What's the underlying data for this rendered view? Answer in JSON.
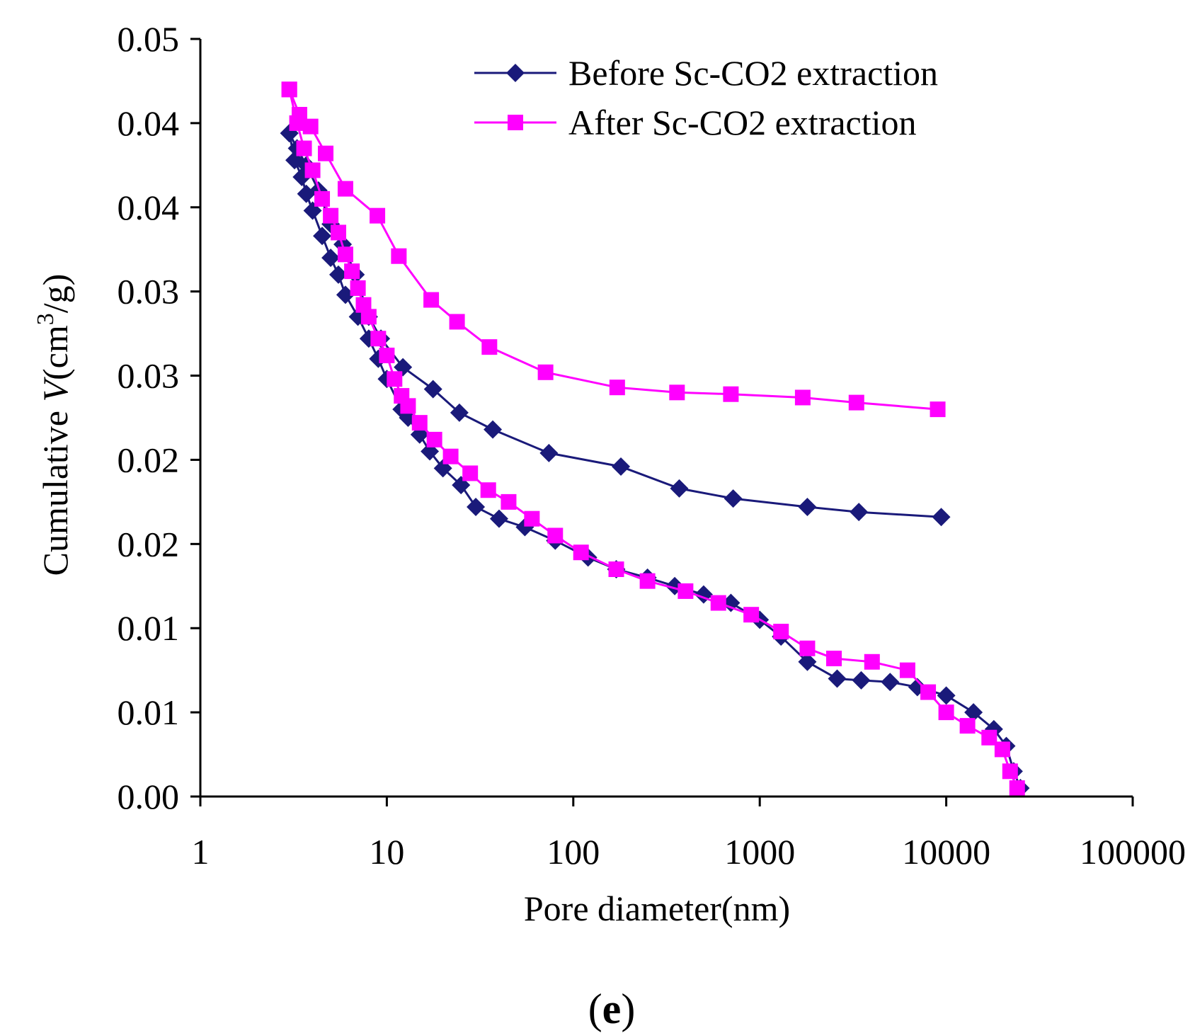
{
  "chart_data": {
    "type": "line",
    "title": "",
    "panel_label": {
      "open": "(",
      "letter": "e",
      "close": ")"
    },
    "xlabel": "Pore diameter(nm)",
    "ylabel": {
      "prefix": "Cumulative ",
      "var": "V",
      "unit_open": "(cm",
      "unit_sup": "3",
      "unit_close": "/g)"
    },
    "x_scale": "log",
    "xlim": [
      1,
      100000
    ],
    "ylim": [
      0,
      0.045
    ],
    "x_tick_values": [
      1,
      10,
      100,
      1000,
      10000,
      100000
    ],
    "x_tick_labels": [
      "1",
      "10",
      "100",
      "1000",
      "10000",
      "100000"
    ],
    "y_tick_values": [
      0,
      0.005,
      0.01,
      0.015,
      0.02,
      0.025,
      0.03,
      0.035,
      0.04,
      0.045
    ],
    "y_tick_labels": [
      "0.00",
      "0.01",
      "0.01",
      "0.02",
      "0.02",
      "0.03",
      "0.03",
      "0.04",
      "0.04",
      "0.05"
    ],
    "legend_position": "top-right",
    "series": [
      {
        "name": "Before Sc-CO2 extraction",
        "color": "#1a1a7a",
        "marker": "diamond",
        "segments": [
          {
            "x": [
              25000,
              23000,
              21000,
              18000,
              14000,
              10000,
              7000,
              5000,
              3500,
              2600,
              1800,
              1300,
              1000,
              700,
              500,
              350,
              250,
              170,
              120,
              80,
              55,
              40,
              30,
              25,
              20,
              17,
              15,
              13,
              12,
              10,
              9,
              8,
              7,
              6,
              5.5,
              5,
              4.5,
              4,
              3.7,
              3.5,
              3.2,
              3
            ],
            "y": [
              0.0005,
              0.0015,
              0.003,
              0.004,
              0.005,
              0.006,
              0.0065,
              0.0068,
              0.0069,
              0.007,
              0.008,
              0.0095,
              0.0105,
              0.0115,
              0.012,
              0.0125,
              0.013,
              0.0135,
              0.0142,
              0.0152,
              0.016,
              0.0165,
              0.0172,
              0.0185,
              0.0195,
              0.0205,
              0.0215,
              0.0225,
              0.023,
              0.0248,
              0.026,
              0.0272,
              0.0285,
              0.0298,
              0.031,
              0.032,
              0.0333,
              0.0348,
              0.0358,
              0.0368,
              0.0378,
              0.0394
            ]
          },
          {
            "x": [
              3,
              3.3,
              3.7,
              4.3,
              5,
              5.8,
              6.8,
              8,
              9.3,
              12.2,
              17.7,
              24.5,
              37,
              74,
              180,
              370,
              720,
              1800,
              3400,
              9400
            ],
            "y": [
              0.0394,
              0.0385,
              0.0375,
              0.036,
              0.034,
              0.0328,
              0.031,
              0.0285,
              0.0272,
              0.0255,
              0.0242,
              0.0228,
              0.0218,
              0.0204,
              0.0196,
              0.0183,
              0.0177,
              0.0172,
              0.0169,
              0.0166
            ]
          }
        ]
      },
      {
        "name": "After Sc-CO2 extraction",
        "color": "#ff00ff",
        "marker": "square",
        "segments": [
          {
            "x": [
              24000,
              22000,
              20000,
              17000,
              13000,
              10000,
              8000,
              6200,
              4000,
              2500,
              1800,
              1300,
              900,
              600,
              400,
              250,
              170,
              110,
              80,
              60,
              45,
              35,
              28,
              22,
              18,
              15,
              13,
              12,
              11,
              10,
              9,
              8,
              7.5,
              7,
              6.5,
              6,
              5.5,
              5,
              4.5,
              4,
              3.6,
              3.3,
              3
            ],
            "y": [
              0.0005,
              0.0015,
              0.0028,
              0.0035,
              0.0042,
              0.005,
              0.0062,
              0.0075,
              0.008,
              0.0082,
              0.0088,
              0.0098,
              0.0108,
              0.0115,
              0.0122,
              0.0128,
              0.0135,
              0.0145,
              0.0155,
              0.0165,
              0.0175,
              0.0182,
              0.0192,
              0.0202,
              0.0212,
              0.0222,
              0.0232,
              0.0238,
              0.0248,
              0.0262,
              0.0272,
              0.0285,
              0.0292,
              0.0302,
              0.0312,
              0.0322,
              0.0335,
              0.0345,
              0.0355,
              0.0372,
              0.0385,
              0.04,
              0.042
            ]
          },
          {
            "x": [
              3,
              3.4,
              3.9,
              4.7,
              6,
              8.9,
              11.6,
              17.3,
              23.8,
              35.5,
              71,
              172,
              360,
              700,
              1700,
              3300,
              9000
            ],
            "y": [
              0.042,
              0.0405,
              0.0398,
              0.0382,
              0.0361,
              0.0345,
              0.0321,
              0.0295,
              0.0282,
              0.0267,
              0.0252,
              0.0243,
              0.024,
              0.0239,
              0.0237,
              0.0234,
              0.023
            ]
          }
        ]
      }
    ]
  }
}
